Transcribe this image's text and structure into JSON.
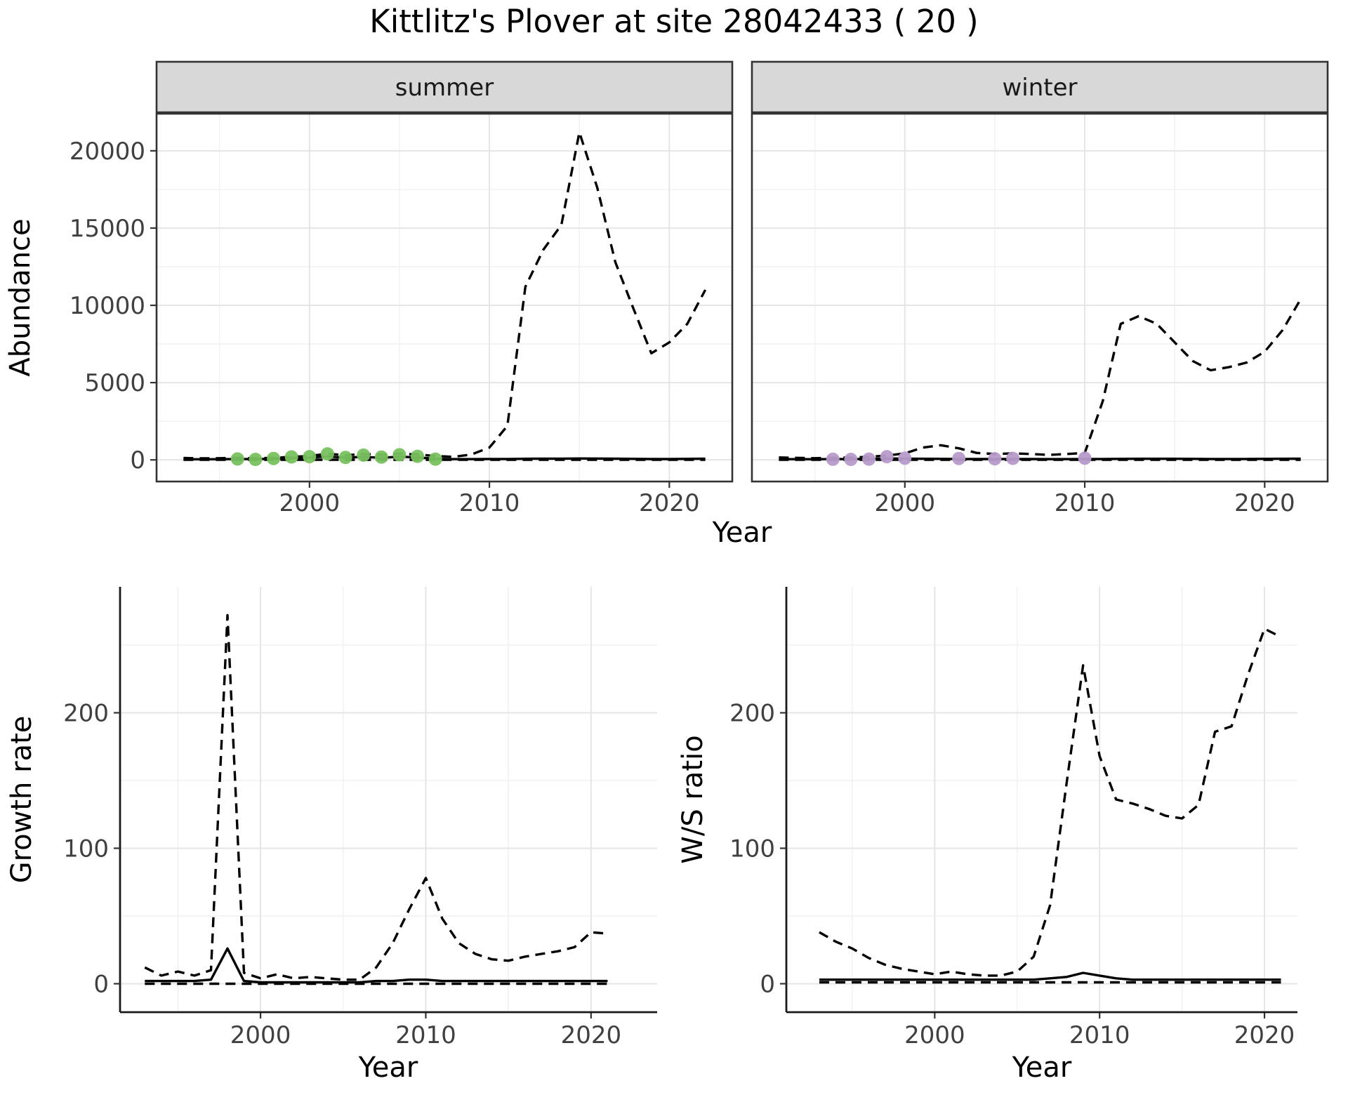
{
  "title": "Kittlitz's Plover at site 28042433 ( 20 )",
  "colors": {
    "summer_point": "#78C15E",
    "winter_point": "#B79BCB",
    "line": "#000000",
    "strip_bg": "#D8D8D8",
    "strip_text": "#1A1A1A",
    "grid_major": "#E5E5E5",
    "grid_minor": "#F2F2F2",
    "panel_border": "#333333",
    "axis_line": "#1A1A1A",
    "tick_text": "#404040",
    "axis_title_text": "#000000"
  },
  "chart_data": [
    {
      "id": "abundance",
      "type": "line",
      "title": "",
      "xlabel": "Year",
      "ylabel": "Abundance",
      "xlim": [
        1991.5,
        2023.5
      ],
      "ylim": [
        -1400,
        22400
      ],
      "xticks": [
        2000,
        2010,
        2020
      ],
      "xtick_minor": [
        1995,
        2005,
        2015
      ],
      "yticks": [
        0,
        5000,
        10000,
        15000,
        20000
      ],
      "ytick_minor": [
        2500,
        7500,
        12500,
        17500
      ],
      "grid": true,
      "legend": "none",
      "facets": [
        "summer",
        "winter"
      ],
      "panels": [
        {
          "facet": "summer",
          "point_color_key": "summer_point",
          "series": [
            {
              "name": "upper-ci",
              "style": "dashed",
              "x": [
                1993,
                1994,
                1995,
                1996,
                1997,
                1998,
                1999,
                2000,
                2001,
                2002,
                2003,
                2004,
                2005,
                2006,
                2007,
                2008,
                2009,
                2010,
                2011,
                2012,
                2013,
                2014,
                2015,
                2016,
                2017,
                2018,
                2019,
                2020,
                2021,
                2022
              ],
              "y": [
                120,
                100,
                110,
                130,
                110,
                130,
                200,
                250,
                400,
                300,
                380,
                330,
                400,
                350,
                250,
                200,
                350,
                800,
                2200,
                11200,
                13600,
                15200,
                21200,
                17600,
                12800,
                9800,
                6900,
                7600,
                8800,
                11000
              ]
            },
            {
              "name": "lower-ci",
              "style": "dashed",
              "x": [
                1993,
                2022
              ],
              "y": [
                10,
                10
              ]
            },
            {
              "name": "estimate",
              "style": "solid",
              "x": [
                1993,
                1994,
                1995,
                1996,
                1997,
                1998,
                1999,
                2000,
                2001,
                2002,
                2003,
                2004,
                2005,
                2006,
                2007,
                2008,
                2009,
                2010,
                2011,
                2012,
                2013,
                2014,
                2015,
                2016,
                2017,
                2018,
                2019,
                2020,
                2021,
                2022
              ],
              "y": [
                40,
                40,
                45,
                60,
                50,
                70,
                120,
                150,
                220,
                140,
                200,
                130,
                210,
                160,
                70,
                50,
                50,
                60,
                60,
                70,
                80,
                80,
                90,
                85,
                75,
                65,
                55,
                55,
                65,
                75
              ]
            },
            {
              "name": "observations",
              "style": "points",
              "x": [
                1996,
                1997,
                1998,
                1999,
                2000,
                2001,
                2002,
                2003,
                2004,
                2005,
                2006,
                2007
              ],
              "y": [
                60,
                30,
                90,
                190,
                210,
                390,
                160,
                310,
                180,
                330,
                230,
                50
              ]
            }
          ]
        },
        {
          "facet": "winter",
          "point_color_key": "winter_point",
          "series": [
            {
              "name": "upper-ci",
              "style": "dashed",
              "x": [
                1993,
                1994,
                1995,
                1996,
                1997,
                1998,
                1999,
                2000,
                2001,
                2002,
                2003,
                2004,
                2005,
                2006,
                2007,
                2008,
                2009,
                2010,
                2011,
                2012,
                2013,
                2014,
                2015,
                2016,
                2017,
                2018,
                2019,
                2020,
                2021,
                2022
              ],
              "y": [
                160,
                130,
                110,
                130,
                160,
                200,
                280,
                420,
                800,
                950,
                750,
                450,
                380,
                420,
                380,
                320,
                380,
                450,
                3800,
                8800,
                9300,
                8800,
                7600,
                6400,
                5800,
                6000,
                6300,
                7000,
                8400,
                10400
              ]
            },
            {
              "name": "lower-ci",
              "style": "dashed",
              "x": [
                1993,
                2022
              ],
              "y": [
                10,
                10
              ]
            },
            {
              "name": "estimate",
              "style": "solid",
              "x": [
                1993,
                1994,
                1995,
                1996,
                1997,
                1998,
                1999,
                2000,
                2001,
                2002,
                2003,
                2004,
                2005,
                2006,
                2007,
                2008,
                2009,
                2010,
                2011,
                2012,
                2013,
                2014,
                2015,
                2016,
                2017,
                2018,
                2019,
                2020,
                2021,
                2022
              ],
              "y": [
                50,
                45,
                45,
                50,
                55,
                60,
                90,
                80,
                70,
                65,
                60,
                55,
                55,
                60,
                55,
                50,
                50,
                55,
                60,
                65,
                70,
                70,
                70,
                65,
                60,
                60,
                60,
                65,
                70,
                75
              ]
            },
            {
              "name": "observations",
              "style": "points",
              "x": [
                1996,
                1997,
                1998,
                1999,
                2000,
                2003,
                2005,
                2006,
                2010
              ],
              "y": [
                40,
                30,
                50,
                210,
                110,
                90,
                70,
                100,
                110
              ]
            }
          ]
        }
      ]
    },
    {
      "id": "growth_rate",
      "type": "line",
      "title": "",
      "xlabel": "Year",
      "ylabel": "Growth rate",
      "xlim": [
        1991.5,
        2024
      ],
      "ylim": [
        -21,
        293
      ],
      "xticks": [
        2000,
        2010,
        2020
      ],
      "xtick_minor": [
        1995,
        2005,
        2015
      ],
      "yticks": [
        0,
        100,
        200
      ],
      "ytick_minor": [
        50,
        150,
        250
      ],
      "grid": true,
      "legend": "none",
      "facets": [],
      "panels": [
        {
          "facet": "",
          "point_color_key": "",
          "series": [
            {
              "name": "upper-ci",
              "style": "dashed",
              "x": [
                1993,
                1994,
                1995,
                1996,
                1997,
                1998,
                1999,
                2000,
                2001,
                2002,
                2003,
                2004,
                2005,
                2006,
                2007,
                2008,
                2009,
                2010,
                2011,
                2012,
                2013,
                2014,
                2015,
                2016,
                2017,
                2018,
                2019,
                2020,
                2021
              ],
              "y": [
                12,
                6,
                9,
                6,
                10,
                272,
                8,
                4,
                7,
                4,
                5,
                4,
                3,
                3,
                12,
                30,
                55,
                78,
                48,
                30,
                22,
                18,
                17,
                20,
                22,
                24,
                27,
                38,
                37
              ]
            },
            {
              "name": "lower-ci",
              "style": "dashed",
              "x": [
                1993,
                2021
              ],
              "y": [
                0,
                0
              ]
            },
            {
              "name": "estimate",
              "style": "solid",
              "x": [
                1993,
                1994,
                1995,
                1996,
                1997,
                1998,
                1999,
                2000,
                2001,
                2002,
                2003,
                2004,
                2005,
                2006,
                2007,
                2008,
                2009,
                2010,
                2011,
                2012,
                2013,
                2014,
                2015,
                2016,
                2017,
                2018,
                2019,
                2020,
                2021
              ],
              "y": [
                2,
                2,
                2,
                2,
                3,
                26,
                2,
                1,
                1,
                1,
                1,
                1,
                1,
                1,
                2,
                2,
                3,
                3,
                2,
                2,
                2,
                2,
                2,
                2,
                2,
                2,
                2,
                2,
                2
              ]
            }
          ]
        }
      ]
    },
    {
      "id": "ws_ratio",
      "type": "line",
      "title": "",
      "xlabel": "Year",
      "ylabel": "W/S ratio",
      "xlim": [
        1991,
        2022
      ],
      "ylim": [
        -21,
        293
      ],
      "xticks": [
        2000,
        2010,
        2020
      ],
      "xtick_minor": [
        1995,
        2005,
        2015
      ],
      "yticks": [
        0,
        100,
        200
      ],
      "ytick_minor": [
        50,
        150,
        250
      ],
      "grid": true,
      "legend": "none",
      "facets": [],
      "panels": [
        {
          "facet": "",
          "point_color_key": "",
          "series": [
            {
              "name": "upper-ci",
              "style": "dashed",
              "x": [
                1993,
                1994,
                1995,
                1996,
                1997,
                1998,
                1999,
                2000,
                2001,
                2002,
                2003,
                2004,
                2005,
                2006,
                2007,
                2008,
                2009,
                2010,
                2011,
                2012,
                2013,
                2014,
                2015,
                2016,
                2017,
                2018,
                2019,
                2020,
                2021
              ],
              "y": [
                38,
                31,
                26,
                19,
                14,
                11,
                9,
                7,
                9,
                7,
                6,
                6,
                9,
                20,
                58,
                148,
                235,
                168,
                136,
                133,
                129,
                124,
                122,
                132,
                186,
                190,
                228,
                262,
                256
              ]
            },
            {
              "name": "lower-ci",
              "style": "dashed",
              "x": [
                1993,
                2021
              ],
              "y": [
                1,
                1
              ]
            },
            {
              "name": "estimate",
              "style": "solid",
              "x": [
                1993,
                1994,
                1995,
                1996,
                1997,
                1998,
                1999,
                2000,
                2001,
                2002,
                2003,
                2004,
                2005,
                2006,
                2007,
                2008,
                2009,
                2010,
                2011,
                2012,
                2013,
                2014,
                2015,
                2016,
                2017,
                2018,
                2019,
                2020,
                2021
              ],
              "y": [
                3,
                3,
                3,
                3,
                3,
                3,
                3,
                3,
                3,
                3,
                3,
                3,
                3,
                3,
                4,
                5,
                8,
                6,
                4,
                3,
                3,
                3,
                3,
                3,
                3,
                3,
                3,
                3,
                3
              ]
            }
          ]
        }
      ]
    }
  ]
}
